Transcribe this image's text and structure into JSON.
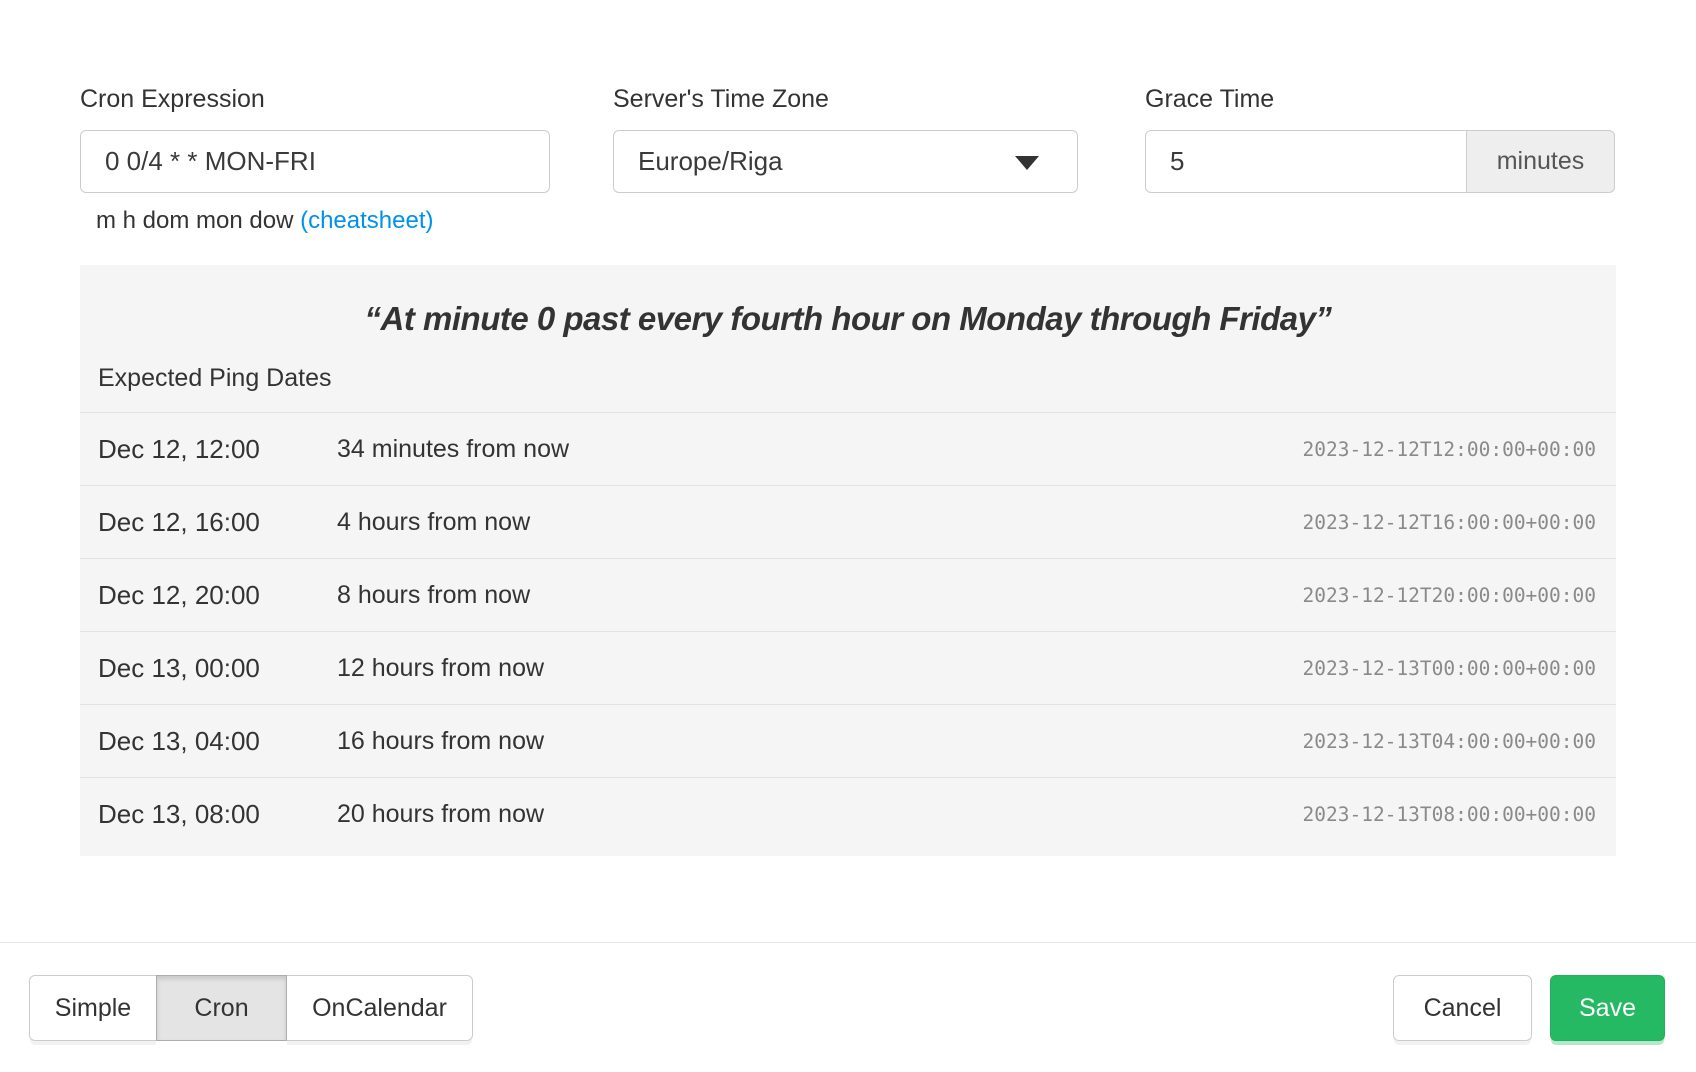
{
  "form": {
    "cron_expression": {
      "label": "Cron Expression",
      "value": "0 0/4 * * MON-FRI",
      "helper": "m h dom mon dow ",
      "helper_link": "(cheatsheet)"
    },
    "timezone": {
      "label": "Server's Time Zone",
      "selected": "Europe/Riga"
    },
    "grace_time": {
      "label": "Grace Time",
      "value": "5",
      "unit": "minutes"
    }
  },
  "preview": {
    "summary": "“At minute 0 past every fourth hour on Monday through Friday”",
    "expected_label": "Expected Ping Dates",
    "pings": [
      {
        "local": "Dec 12, 12:00",
        "relative": "34 minutes from now",
        "iso": "2023-12-12T12:00:00+00:00"
      },
      {
        "local": "Dec 12, 16:00",
        "relative": "4 hours from now",
        "iso": "2023-12-12T16:00:00+00:00"
      },
      {
        "local": "Dec 12, 20:00",
        "relative": "8 hours from now",
        "iso": "2023-12-12T20:00:00+00:00"
      },
      {
        "local": "Dec 13, 00:00",
        "relative": "12 hours from now",
        "iso": "2023-12-13T00:00:00+00:00"
      },
      {
        "local": "Dec 13, 04:00",
        "relative": "16 hours from now",
        "iso": "2023-12-13T04:00:00+00:00"
      },
      {
        "local": "Dec 13, 08:00",
        "relative": "20 hours from now",
        "iso": "2023-12-13T08:00:00+00:00"
      }
    ]
  },
  "footer": {
    "modes": [
      {
        "label": "Simple",
        "active": false
      },
      {
        "label": "Cron",
        "active": true
      },
      {
        "label": "OnCalendar",
        "active": false
      }
    ],
    "cancel_label": "Cancel",
    "save_label": "Save"
  },
  "colors": {
    "save_green": "#26b964",
    "link_blue": "#0091ea",
    "panel_bg": "#f5f5f5",
    "active_mode_bg": "#e4e4e4"
  }
}
